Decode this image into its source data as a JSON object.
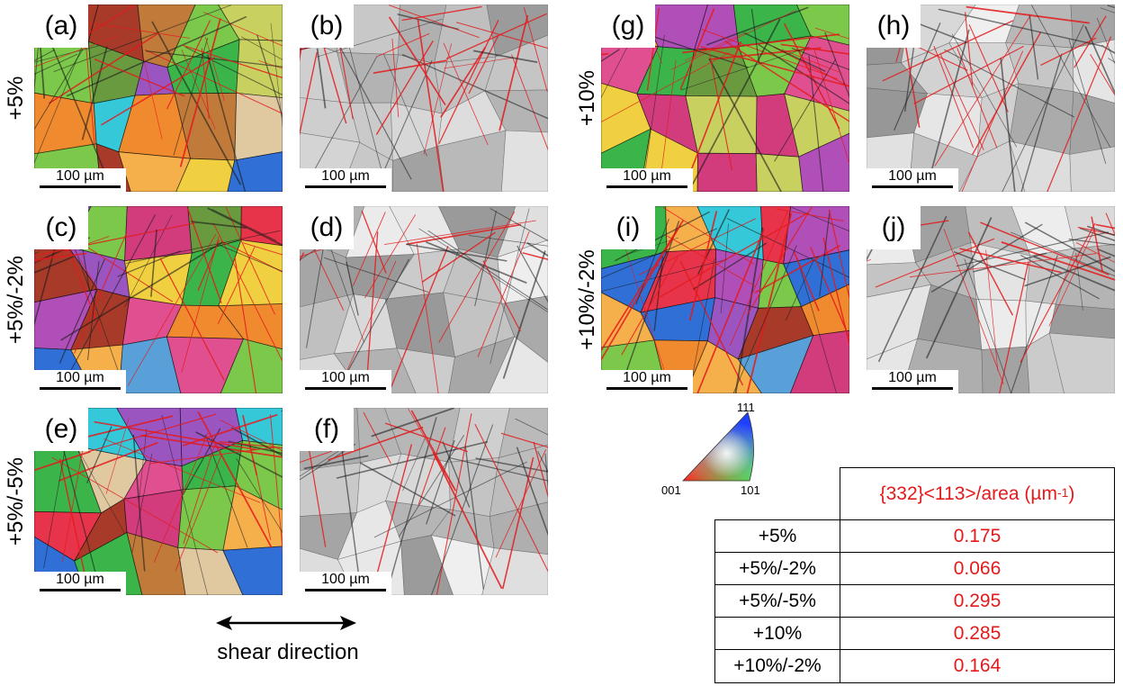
{
  "panels": [
    {
      "id": "a",
      "label": "(a)",
      "scale": "100 µm",
      "style": "ipf"
    },
    {
      "id": "b",
      "label": "(b)",
      "scale": "100 µm",
      "style": "iq"
    },
    {
      "id": "c",
      "label": "(c)",
      "scale": "100 µm",
      "style": "ipf"
    },
    {
      "id": "d",
      "label": "(d)",
      "scale": "100 µm",
      "style": "iq"
    },
    {
      "id": "e",
      "label": "(e)",
      "scale": "100 µm",
      "style": "ipf"
    },
    {
      "id": "f",
      "label": "(f)",
      "scale": "100 µm",
      "style": "iq"
    },
    {
      "id": "g",
      "label": "(g)",
      "scale": "100 µm",
      "style": "ipf"
    },
    {
      "id": "h",
      "label": "(h)",
      "scale": "100 µm",
      "style": "iq"
    },
    {
      "id": "i",
      "label": "(i)",
      "scale": "100 µm",
      "style": "ipf"
    },
    {
      "id": "j",
      "label": "(j)",
      "scale": "100 µm",
      "style": "iq"
    }
  ],
  "row_labels": [
    "+5%",
    "+5%/-2%",
    "+5%/-5%",
    "+10%",
    "+10%/-2%"
  ],
  "caption": "shear direction",
  "ipf_legend": {
    "top": "111",
    "left": "001",
    "right": "101"
  },
  "table": {
    "header": "{332}<113>/area (µm",
    "header_sup": "-1",
    "header_close": ")",
    "rows": [
      {
        "condition": "+5%",
        "value": "0.175"
      },
      {
        "condition": "+5%/-2%",
        "value": "0.066"
      },
      {
        "condition": "+5%/-5%",
        "value": "0.295"
      },
      {
        "condition": "+10%",
        "value": "0.285"
      },
      {
        "condition": "+10%/-2%",
        "value": "0.164"
      }
    ]
  },
  "colors": {
    "twin_red": "#e31a1c",
    "table_red": "#e31a1c"
  }
}
